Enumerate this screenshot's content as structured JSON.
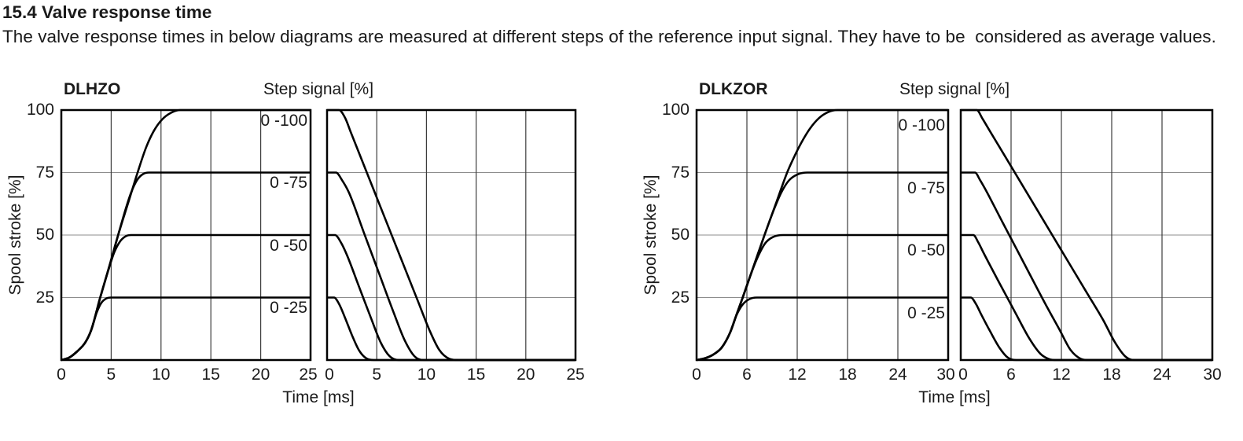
{
  "page": {
    "heading": "15.4 Valve response time",
    "body": "The valve response times in below diagrams are measured at different steps of the reference input signal. They have to be  considered as average values."
  },
  "chart_data": [
    {
      "type": "line",
      "title": "DLHZO",
      "top_right_label": "Step signal [%]",
      "xlabel": "Time [ms]",
      "ylabel": "Spool stroke [%]",
      "xlim": [
        0,
        25
      ],
      "ylim": [
        0,
        100
      ],
      "xticks": [
        0,
        5,
        10,
        15,
        20,
        25
      ],
      "yticks": [
        25,
        50,
        75,
        100
      ],
      "grid": true,
      "legend_position": "inside-right",
      "panels": [
        {
          "name": "opening-response",
          "show_series_labels": true,
          "series": [
            {
              "label": "0 -100",
              "step_level": 100,
              "points": [
                [
                  0,
                  0
                ],
                [
                  0.8,
                  1
                ],
                [
                  1.6,
                  3.5
                ],
                [
                  2.4,
                  7
                ],
                [
                  3.0,
                  12
                ],
                [
                  3.9,
                  25
                ],
                [
                  4.8,
                  37.3
                ],
                [
                  5.7,
                  50
                ],
                [
                  6.7,
                  62.8
                ],
                [
                  7.65,
                  75
                ],
                [
                  8.5,
                  85
                ],
                [
                  9.3,
                  91.8
                ],
                [
                  10.1,
                  96.2
                ],
                [
                  11,
                  98.9
                ],
                [
                  11.9,
                  100
                ],
                [
                  25,
                  100
                ]
              ]
            },
            {
              "label": "0 -75",
              "step_level": 75,
              "points": [
                [
                  0,
                  0
                ],
                [
                  0.8,
                  1
                ],
                [
                  1.6,
                  3.5
                ],
                [
                  2.4,
                  7
                ],
                [
                  3.0,
                  12
                ],
                [
                  3.9,
                  25
                ],
                [
                  4.8,
                  37.3
                ],
                [
                  5.7,
                  50
                ],
                [
                  6.5,
                  61
                ],
                [
                  7.0,
                  67
                ],
                [
                  7.6,
                  72
                ],
                [
                  8.2,
                  74.4
                ],
                [
                  8.8,
                  75
                ],
                [
                  25,
                  75
                ]
              ]
            },
            {
              "label": "0 -50",
              "step_level": 50,
              "points": [
                [
                  0,
                  0
                ],
                [
                  0.8,
                  1
                ],
                [
                  1.6,
                  3.5
                ],
                [
                  2.4,
                  7
                ],
                [
                  3.0,
                  12
                ],
                [
                  3.9,
                  25
                ],
                [
                  4.8,
                  37
                ],
                [
                  5.3,
                  43
                ],
                [
                  5.9,
                  47.5
                ],
                [
                  6.5,
                  49.6
                ],
                [
                  7.0,
                  50
                ],
                [
                  25,
                  50
                ]
              ]
            },
            {
              "label": "0 -25",
              "step_level": 25,
              "points": [
                [
                  0,
                  0
                ],
                [
                  0.8,
                  1
                ],
                [
                  1.6,
                  3.5
                ],
                [
                  2.4,
                  7
                ],
                [
                  3.0,
                  12
                ],
                [
                  3.55,
                  19
                ],
                [
                  4.0,
                  22.8
                ],
                [
                  4.5,
                  24.6
                ],
                [
                  5.0,
                  25
                ],
                [
                  25,
                  25
                ]
              ]
            }
          ]
        },
        {
          "name": "closing-response",
          "show_series_labels": false,
          "series": [
            {
              "label": "0 -100",
              "step_level": 100,
              "points": [
                [
                  0,
                  100
                ],
                [
                  1.2,
                  100
                ],
                [
                  1.8,
                  97
                ],
                [
                  2.4,
                  91
                ],
                [
                  4,
                  75
                ],
                [
                  5.7,
                  58
                ],
                [
                  7.4,
                  41
                ],
                [
                  9.1,
                  24
                ],
                [
                  10.3,
                  12
                ],
                [
                  11.3,
                  4
                ],
                [
                  12.3,
                  0.5
                ],
                [
                  13.2,
                  0
                ],
                [
                  25,
                  0
                ]
              ]
            },
            {
              "label": "0 -75",
              "step_level": 75,
              "points": [
                [
                  0,
                  75
                ],
                [
                  0.9,
                  75
                ],
                [
                  1.5,
                  72
                ],
                [
                  2.2,
                  67
                ],
                [
                  3.7,
                  51
                ],
                [
                  5.2,
                  35
                ],
                [
                  6.7,
                  19
                ],
                [
                  7.8,
                  8
                ],
                [
                  8.8,
                  1.5
                ],
                [
                  9.7,
                  0
                ],
                [
                  25,
                  0
                ]
              ]
            },
            {
              "label": "0 -50",
              "step_level": 50,
              "points": [
                [
                  0,
                  50
                ],
                [
                  0.8,
                  50
                ],
                [
                  1.4,
                  47
                ],
                [
                  2.0,
                  42
                ],
                [
                  3.2,
                  29.5
                ],
                [
                  4.4,
                  17
                ],
                [
                  5.4,
                  7
                ],
                [
                  6.3,
                  1.5
                ],
                [
                  7.2,
                  0
                ],
                [
                  25,
                  0
                ]
              ]
            },
            {
              "label": "0 -25",
              "step_level": 25,
              "points": [
                [
                  0,
                  25
                ],
                [
                  0.7,
                  25
                ],
                [
                  1.2,
                  22.5
                ],
                [
                  1.8,
                  17
                ],
                [
                  2.5,
                  10
                ],
                [
                  3.2,
                  4
                ],
                [
                  3.9,
                  0.8
                ],
                [
                  4.7,
                  0
                ],
                [
                  25,
                  0
                ]
              ]
            }
          ]
        }
      ]
    },
    {
      "type": "line",
      "title": "DLKZOR",
      "top_right_label": "Step signal [%]",
      "xlabel": "Time [ms]",
      "ylabel": "Spool stroke [%]",
      "xlim": [
        0,
        30
      ],
      "ylim": [
        0,
        100
      ],
      "xticks": [
        0,
        6,
        12,
        18,
        24,
        30
      ],
      "yticks": [
        25,
        50,
        75,
        100
      ],
      "grid": true,
      "legend_position": "inside-right",
      "panels": [
        {
          "name": "opening-response",
          "show_series_labels": true,
          "series": [
            {
              "label": "0 -100",
              "step_level": 100,
              "points": [
                [
                  0,
                  0
                ],
                [
                  1,
                  0.7
                ],
                [
                  2,
                  2.2
                ],
                [
                  3,
                  5
                ],
                [
                  4,
                  11
                ],
                [
                  4.8,
                  18.5
                ],
                [
                  5.5,
                  25
                ],
                [
                  6.8,
                  37.5
                ],
                [
                  8.1,
                  50
                ],
                [
                  9.45,
                  62.5
                ],
                [
                  10.8,
                  75
                ],
                [
                  11.6,
                  81
                ],
                [
                  12.5,
                  87
                ],
                [
                  13.5,
                  92.5
                ],
                [
                  14.6,
                  96.8
                ],
                [
                  15.7,
                  99.2
                ],
                [
                  16.8,
                  100
                ],
                [
                  30,
                  100
                ]
              ]
            },
            {
              "label": "0 -75",
              "step_level": 75,
              "points": [
                [
                  0,
                  0
                ],
                [
                  1,
                  0.7
                ],
                [
                  2,
                  2.2
                ],
                [
                  3,
                  5
                ],
                [
                  4,
                  11
                ],
                [
                  4.8,
                  18.5
                ],
                [
                  5.5,
                  25
                ],
                [
                  6.8,
                  37.5
                ],
                [
                  8.1,
                  50
                ],
                [
                  9.2,
                  60
                ],
                [
                  10.1,
                  67
                ],
                [
                  11.0,
                  71.8
                ],
                [
                  12.0,
                  74.2
                ],
                [
                  13.2,
                  75
                ],
                [
                  30,
                  75
                ]
              ]
            },
            {
              "label": "0 -50",
              "step_level": 50,
              "points": [
                [
                  0,
                  0
                ],
                [
                  1,
                  0.7
                ],
                [
                  2,
                  2.2
                ],
                [
                  3,
                  5
                ],
                [
                  4,
                  11
                ],
                [
                  4.8,
                  18.5
                ],
                [
                  5.5,
                  25
                ],
                [
                  6.6,
                  35.5
                ],
                [
                  7.4,
                  42
                ],
                [
                  8.2,
                  46.8
                ],
                [
                  9.1,
                  49.2
                ],
                [
                  10.3,
                  50
                ],
                [
                  30,
                  50
                ]
              ]
            },
            {
              "label": "0 -25",
              "step_level": 25,
              "points": [
                [
                  0,
                  0
                ],
                [
                  1,
                  0.7
                ],
                [
                  2,
                  2.2
                ],
                [
                  3,
                  5
                ],
                [
                  4,
                  11
                ],
                [
                  4.7,
                  17.5
                ],
                [
                  5.4,
                  21.8
                ],
                [
                  6.2,
                  24.2
                ],
                [
                  7.2,
                  25
                ],
                [
                  30,
                  25
                ]
              ]
            }
          ]
        },
        {
          "name": "closing-response",
          "show_series_labels": false,
          "series": [
            {
              "label": "0 -100",
              "step_level": 100,
              "points": [
                [
                  0,
                  100
                ],
                [
                  1.9,
                  100
                ],
                [
                  2.6,
                  96.5
                ],
                [
                  3.4,
                  92
                ],
                [
                  6,
                  77.5
                ],
                [
                  9,
                  60.7
                ],
                [
                  12,
                  43.9
                ],
                [
                  15,
                  27.1
                ],
                [
                  17,
                  15.9
                ],
                [
                  18.4,
                  7
                ],
                [
                  19.6,
                  1.5
                ],
                [
                  20.6,
                  0
                ],
                [
                  30,
                  0
                ]
              ]
            },
            {
              "label": "0 -75",
              "step_level": 75,
              "points": [
                [
                  0,
                  75
                ],
                [
                  1.7,
                  75
                ],
                [
                  2.3,
                  72
                ],
                [
                  2.9,
                  68.5
                ],
                [
                  5,
                  55
                ],
                [
                  7.5,
                  39
                ],
                [
                  10,
                  23
                ],
                [
                  11.8,
                  12
                ],
                [
                  13.1,
                  4
                ],
                [
                  14.3,
                  0.5
                ],
                [
                  15.2,
                  0
                ],
                [
                  30,
                  0
                ]
              ]
            },
            {
              "label": "0 -50",
              "step_level": 50,
              "points": [
                [
                  0,
                  50
                ],
                [
                  1.5,
                  50
                ],
                [
                  2.1,
                  47
                ],
                [
                  2.7,
                  43
                ],
                [
                  4.5,
                  31.5
                ],
                [
                  6.5,
                  19
                ],
                [
                  8.2,
                  8.5
                ],
                [
                  9.5,
                  2.5
                ],
                [
                  10.6,
                  0.3
                ],
                [
                  11.4,
                  0
                ],
                [
                  30,
                  0
                ]
              ]
            },
            {
              "label": "0 -25",
              "step_level": 25,
              "points": [
                [
                  0,
                  25
                ],
                [
                  1.2,
                  25
                ],
                [
                  1.8,
                  22.5
                ],
                [
                  2.4,
                  18.5
                ],
                [
                  3.5,
                  11.5
                ],
                [
                  4.6,
                  5
                ],
                [
                  5.6,
                  1
                ],
                [
                  6.6,
                  0
                ],
                [
                  30,
                  0
                ]
              ]
            }
          ]
        }
      ]
    }
  ]
}
